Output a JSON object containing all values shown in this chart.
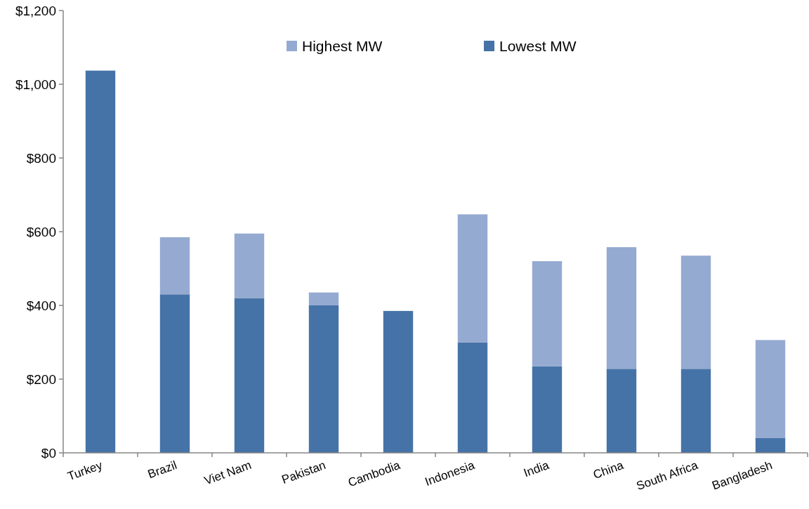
{
  "chart_data": {
    "type": "bar",
    "stacked": true,
    "legend": "top",
    "categories": [
      "Turkey",
      "Brazil",
      "Viet Nam",
      "Pakistan",
      "Cambodia",
      "Indonesia",
      "India",
      "China",
      "South Africa",
      "Bangladesh"
    ],
    "series": [
      {
        "name": "Lowest MW",
        "color": "#4673a7",
        "values": [
          1037,
          430,
          420,
          400,
          385,
          300,
          235,
          228,
          228,
          41
        ]
      },
      {
        "name": "Highest MW",
        "color": "#95aad1",
        "values": [
          null,
          155,
          175,
          35,
          null,
          347,
          285,
          330,
          307,
          265
        ]
      }
    ],
    "ylim": [
      0,
      1200
    ],
    "yticks": [
      {
        "value": 0,
        "label": "$0"
      },
      {
        "value": 200,
        "label": "$200"
      },
      {
        "value": 400,
        "label": "$400"
      },
      {
        "value": 600,
        "label": "$600"
      },
      {
        "value": 800,
        "label": "$800"
      },
      {
        "value": 1000,
        "label": "$1,000"
      },
      {
        "value": 1200,
        "label": "$1,200"
      }
    ]
  }
}
